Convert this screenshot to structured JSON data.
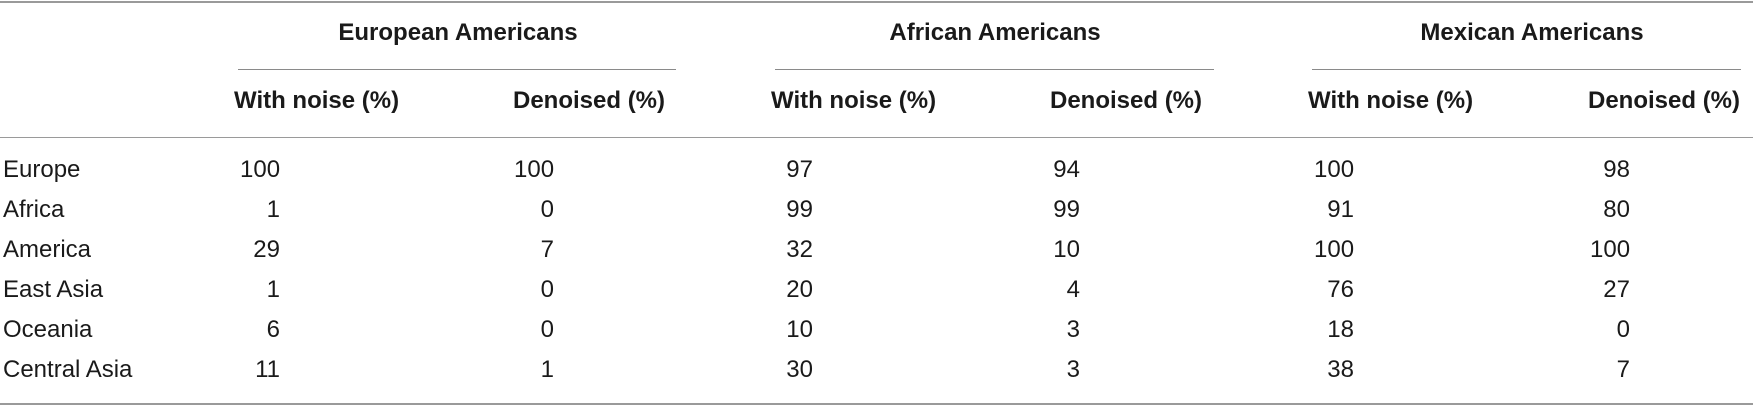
{
  "groups": [
    {
      "title": "European Americans"
    },
    {
      "title": "African Americans"
    },
    {
      "title": "Mexican Americans"
    }
  ],
  "column_headers": [
    "With noise (%)",
    "Denoised (%)",
    "With noise (%)",
    "Denoised (%)",
    "With noise (%)",
    "Denoised (%)"
  ],
  "rows": [
    {
      "label": "Europe",
      "values": [
        "100",
        "100",
        "97",
        "94",
        "100",
        "98"
      ]
    },
    {
      "label": "Africa",
      "values": [
        "1",
        "0",
        "99",
        "99",
        "91",
        "80"
      ]
    },
    {
      "label": "America",
      "values": [
        "29",
        "7",
        "32",
        "10",
        "100",
        "100"
      ]
    },
    {
      "label": "East Asia",
      "values": [
        "1",
        "0",
        "20",
        "4",
        "76",
        "27"
      ]
    },
    {
      "label": "Oceania",
      "values": [
        "6",
        "0",
        "10",
        "3",
        "18",
        "0"
      ]
    },
    {
      "label": "Central Asia",
      "values": [
        "11",
        "1",
        "30",
        "3",
        "38",
        "7"
      ]
    }
  ]
}
